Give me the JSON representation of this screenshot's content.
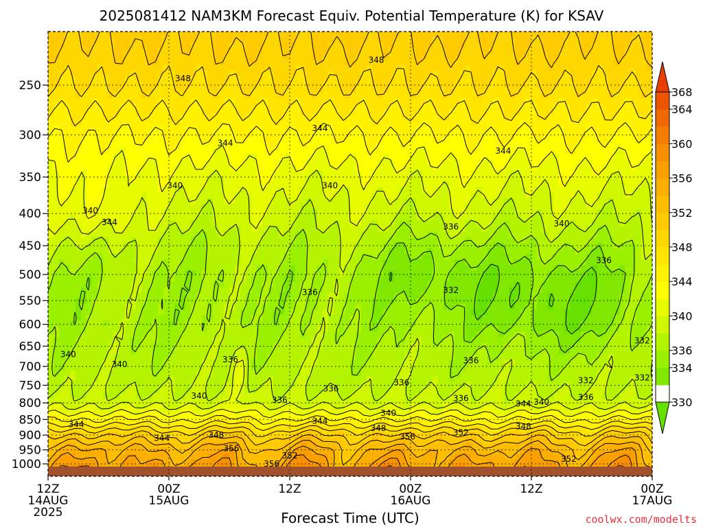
{
  "title": "2025081412 NAM3KM Forecast Equiv. Potential Temperature (K) for KSAV",
  "xlabel": "Forecast Time (UTC)",
  "credit": "coolwx.com/modelts",
  "chart_data": {
    "type": "heatmap",
    "title": "2025081412 NAM3KM Forecast Equiv. Potential Temperature (K) for KSAV",
    "xlabel": "Forecast Time (UTC)",
    "ylabel": "",
    "x_ticks": [
      {
        "hour": 0,
        "lines": [
          "12Z",
          "14AUG",
          "2025"
        ]
      },
      {
        "hour": 12,
        "lines": [
          "00Z",
          "15AUG"
        ]
      },
      {
        "hour": 24,
        "lines": [
          "12Z"
        ]
      },
      {
        "hour": 36,
        "lines": [
          "00Z",
          "16AUG"
        ]
      },
      {
        "hour": 48,
        "lines": [
          "12Z"
        ]
      },
      {
        "hour": 60,
        "lines": [
          "00Z",
          "17AUG"
        ]
      }
    ],
    "xlim": [
      0,
      60
    ],
    "y_ticks": [
      250,
      300,
      350,
      400,
      450,
      500,
      550,
      600,
      650,
      700,
      750,
      800,
      850,
      900,
      950,
      1000
    ],
    "ylim": [
      200,
      1025
    ],
    "y_log": true,
    "grid": true,
    "colorbar": {
      "levels": [
        330,
        332,
        334,
        336,
        338,
        340,
        342,
        344,
        346,
        348,
        350,
        352,
        354,
        356,
        358,
        360,
        362,
        364,
        366,
        368
      ],
      "tick_labels": [
        "330",
        "334",
        "336",
        "340",
        "344",
        "348",
        "352",
        "356",
        "360",
        "364",
        "368"
      ],
      "colors": [
        "#66e000",
        "#80e800",
        "#9af000",
        "#b4f400",
        "#cff800",
        "#e8fc00",
        "#ffff00",
        "#fff100",
        "#ffe400",
        "#ffd700",
        "#ffca00",
        "#fdbd00",
        "#fbaf00",
        "#f9a000",
        "#f69000",
        "#f37d00",
        "#f06800",
        "#ec5400",
        "#e84000"
      ]
    },
    "contour_labels": [
      {
        "text": "348",
        "hour": 13.4,
        "p": 244
      },
      {
        "text": "348",
        "hour": 32.6,
        "p": 228
      },
      {
        "text": "344",
        "hour": 17.6,
        "p": 309
      },
      {
        "text": "344",
        "hour": 27.0,
        "p": 293
      },
      {
        "text": "344",
        "hour": 45.2,
        "p": 318
      },
      {
        "text": "340",
        "hour": 12.6,
        "p": 361
      },
      {
        "text": "340",
        "hour": 28.0,
        "p": 361
      },
      {
        "text": "340",
        "hour": 4.2,
        "p": 396
      },
      {
        "text": "344",
        "hour": 6.1,
        "p": 413
      },
      {
        "text": "336",
        "hour": 40.0,
        "p": 420
      },
      {
        "text": "340",
        "hour": 51.0,
        "p": 415
      },
      {
        "text": "336",
        "hour": 55.2,
        "p": 475
      },
      {
        "text": "336",
        "hour": 26.0,
        "p": 534
      },
      {
        "text": "332",
        "hour": 40.0,
        "p": 530
      },
      {
        "text": "332",
        "hour": 59.0,
        "p": 637
      },
      {
        "text": "340",
        "hour": 2.0,
        "p": 670
      },
      {
        "text": "336",
        "hour": 18.1,
        "p": 683
      },
      {
        "text": "340",
        "hour": 7.1,
        "p": 695
      },
      {
        "text": "336",
        "hour": 42.0,
        "p": 685
      },
      {
        "text": "332",
        "hour": 59.0,
        "p": 730
      },
      {
        "text": "336",
        "hour": 35.1,
        "p": 743
      },
      {
        "text": "332",
        "hour": 53.4,
        "p": 737
      },
      {
        "text": "336",
        "hour": 28.1,
        "p": 760
      },
      {
        "text": "340",
        "hour": 15.0,
        "p": 780
      },
      {
        "text": "336",
        "hour": 23.0,
        "p": 792
      },
      {
        "text": "336",
        "hour": 41.0,
        "p": 787
      },
      {
        "text": "336",
        "hour": 53.4,
        "p": 784
      },
      {
        "text": "344",
        "hour": 47.2,
        "p": 803
      },
      {
        "text": "340",
        "hour": 49.0,
        "p": 798
      },
      {
        "text": "340",
        "hour": 33.8,
        "p": 830
      },
      {
        "text": "344",
        "hour": 27.0,
        "p": 855
      },
      {
        "text": "344",
        "hour": 2.8,
        "p": 865
      },
      {
        "text": "348",
        "hour": 32.8,
        "p": 878
      },
      {
        "text": "348",
        "hour": 47.2,
        "p": 872
      },
      {
        "text": "348",
        "hour": 16.7,
        "p": 900
      },
      {
        "text": "352",
        "hour": 41.0,
        "p": 892
      },
      {
        "text": "356",
        "hour": 35.7,
        "p": 905
      },
      {
        "text": "344",
        "hour": 11.3,
        "p": 910
      },
      {
        "text": "356",
        "hour": 18.2,
        "p": 945
      },
      {
        "text": "352",
        "hour": 24.0,
        "p": 970
      },
      {
        "text": "352",
        "hour": 51.7,
        "p": 982
      },
      {
        "text": "356",
        "hour": 22.2,
        "p": 1000
      }
    ]
  }
}
